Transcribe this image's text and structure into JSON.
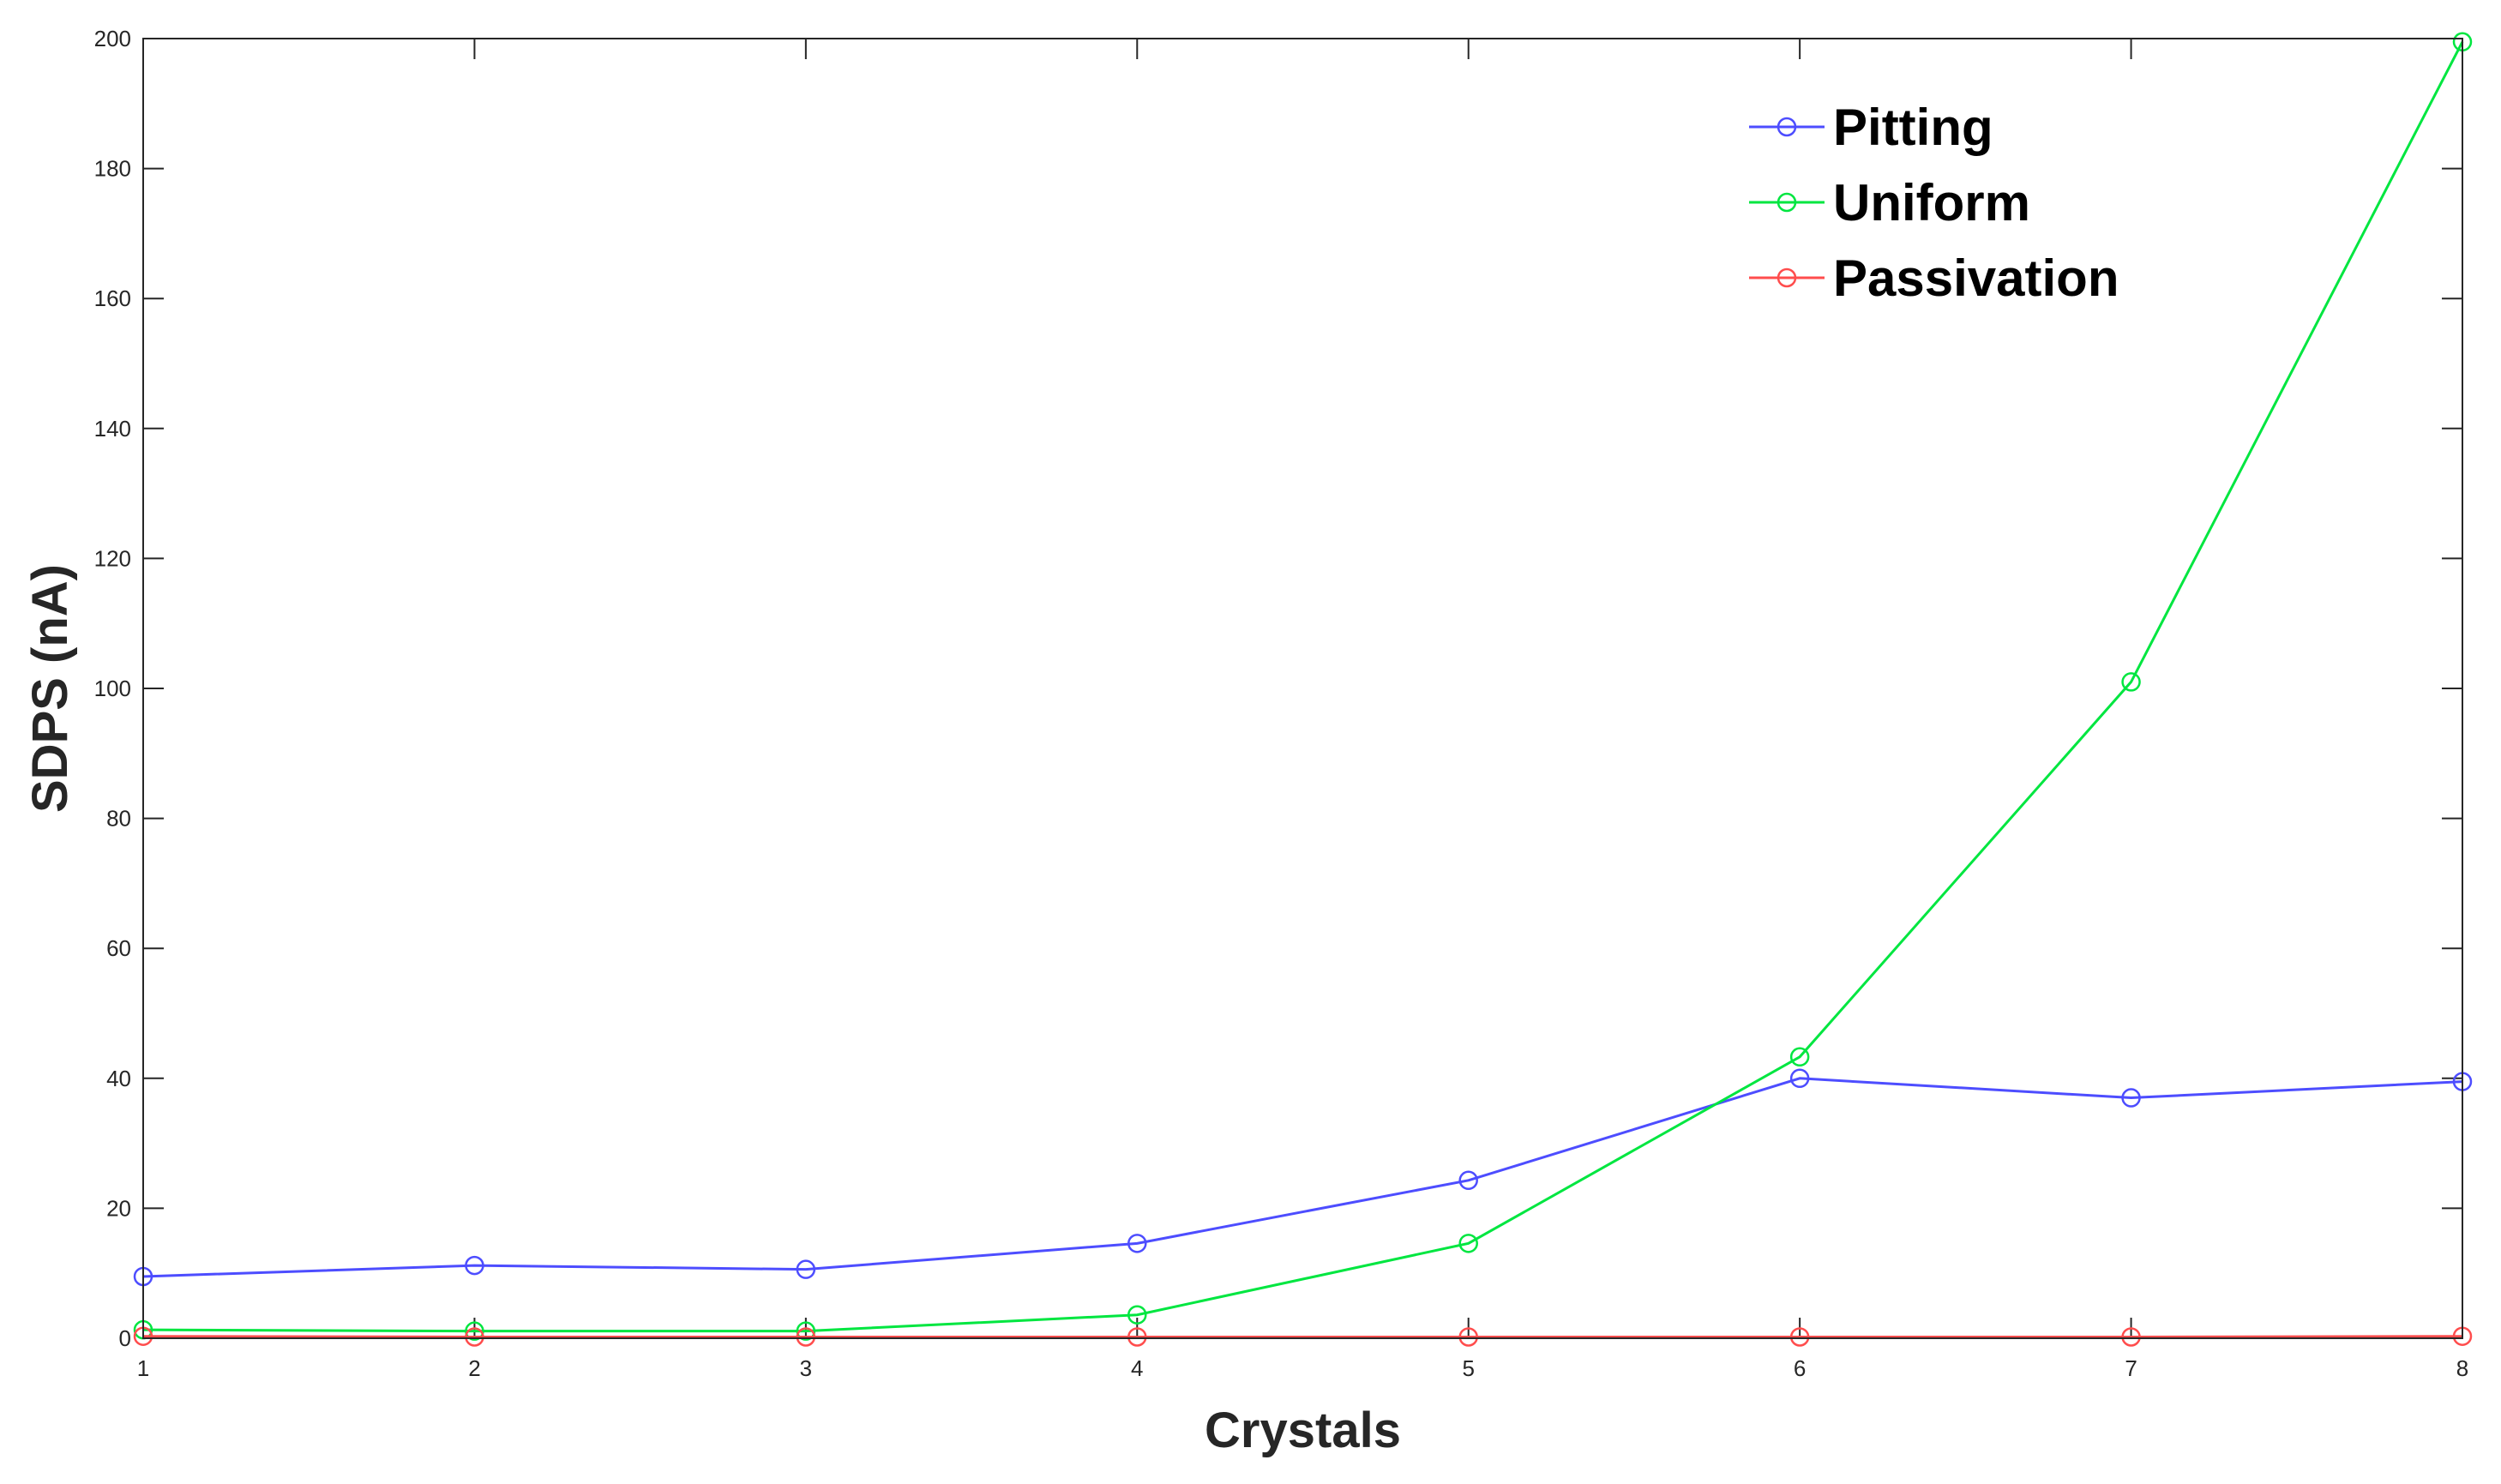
{
  "chart_data": {
    "type": "line",
    "title": "",
    "xlabel": "Crystals",
    "ylabel": "SDPS (nA)",
    "x": [
      1,
      2,
      3,
      4,
      5,
      6,
      7,
      8
    ],
    "xlim": [
      1,
      8
    ],
    "ylim": [
      0,
      200
    ],
    "xticks": [
      1,
      2,
      3,
      4,
      5,
      6,
      7,
      8
    ],
    "yticks": [
      0,
      20,
      40,
      60,
      80,
      100,
      120,
      140,
      160,
      180,
      200
    ],
    "grid": false,
    "legend_position": "top-right",
    "marker": "circle",
    "series": [
      {
        "name": "Pitting",
        "color": "#4d4dff",
        "values": [
          9.5,
          11.2,
          10.6,
          14.6,
          24.3,
          40.0,
          37.0,
          39.5
        ]
      },
      {
        "name": "Uniform",
        "color": "#00e640",
        "values": [
          1.3,
          1.1,
          1.1,
          3.6,
          14.6,
          43.3,
          101.0,
          199.5
        ]
      },
      {
        "name": "Passivation",
        "color": "#ff4d4d",
        "values": [
          0.3,
          0.2,
          0.2,
          0.2,
          0.2,
          0.2,
          0.2,
          0.3
        ]
      }
    ]
  }
}
